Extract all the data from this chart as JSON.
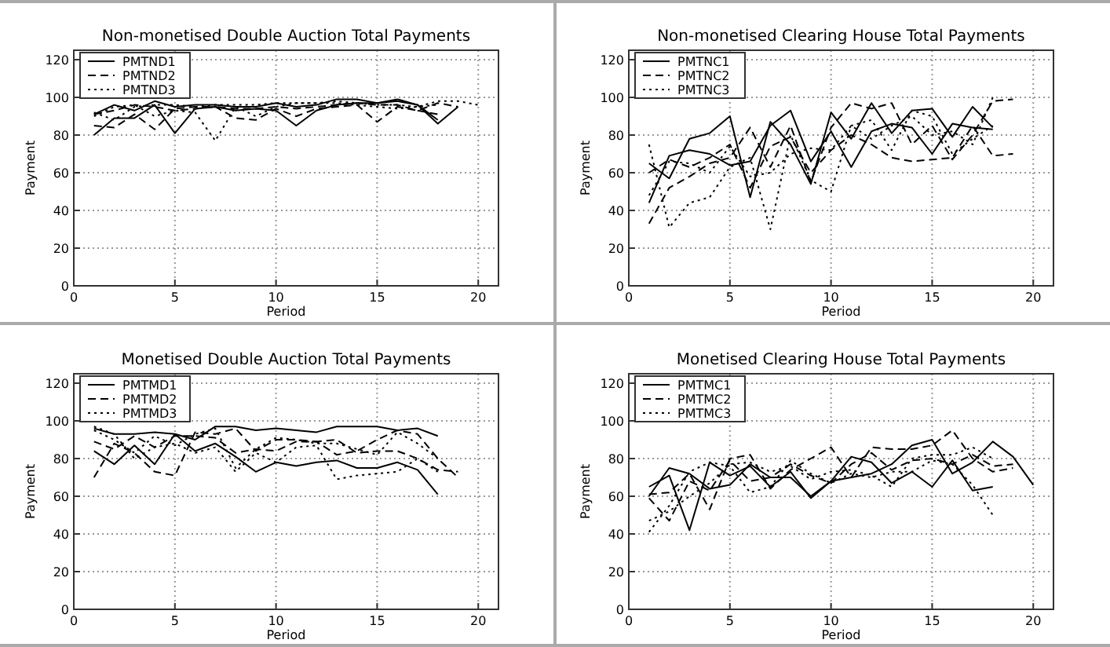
{
  "chart_data": [
    {
      "type": "line",
      "title": "Non-monetised Double Auction Total Payments",
      "xlabel": "Period",
      "ylabel": "Payment",
      "xlim": [
        0,
        21
      ],
      "xticks": [
        0,
        5,
        10,
        15,
        20
      ],
      "ylim": [
        0,
        125
      ],
      "yticks": [
        0,
        20,
        40,
        60,
        80,
        100,
        120
      ],
      "grid": true,
      "legend": "top left",
      "x": [
        1,
        2,
        3,
        4,
        5,
        6,
        7,
        8,
        9,
        10,
        11,
        12,
        13,
        14,
        15,
        16,
        17,
        18,
        19,
        20
      ],
      "series": [
        {
          "name": "PMTND1",
          "color": "#000000",
          "line_style": "solid",
          "values": [
            80,
            89,
            89,
            96,
            81,
            94,
            95,
            93,
            94,
            93,
            85,
            93,
            96,
            97,
            97,
            99,
            96,
            86,
            95,
            null
          ]
        },
        {
          "name": "PMTND2",
          "color": "#000000",
          "line_style": "dashed",
          "values": [
            85,
            84,
            91,
            83,
            94,
            95,
            95,
            89,
            88,
            94,
            90,
            94,
            95,
            96,
            87,
            95,
            93,
            97,
            95,
            null
          ]
        },
        {
          "name": "PMTND3",
          "color": "#000000",
          "line_style": "dotted",
          "values": [
            90,
            95,
            96,
            90,
            93,
            92,
            77,
            95,
            90,
            95,
            97,
            97,
            97,
            96,
            95,
            94,
            95,
            98,
            98,
            96
          ]
        },
        {
          "color": "#000000",
          "line_style": "solid",
          "values": [
            91,
            96,
            93,
            98,
            95,
            96,
            96,
            95,
            95,
            97,
            95,
            96,
            99,
            99,
            97,
            98,
            96,
            88,
            null,
            null
          ]
        },
        {
          "color": "#000000",
          "line_style": "dashed",
          "values": [
            91,
            93,
            96,
            95,
            93,
            94,
            95,
            94,
            94,
            95,
            94,
            95,
            96,
            97,
            96,
            96,
            93,
            91,
            null,
            null
          ]
        },
        {
          "color": "#000000",
          "line_style": "dotted",
          "values": [
            92,
            88,
            95,
            96,
            96,
            95,
            96,
            96,
            96,
            97,
            97,
            97,
            98,
            97,
            96,
            96,
            95,
            96,
            null,
            null
          ]
        }
      ]
    },
    {
      "type": "line",
      "title": "Non-monetised Clearing House Total Payments",
      "xlabel": "Period",
      "ylabel": "Payment",
      "xlim": [
        0,
        21
      ],
      "xticks": [
        0,
        5,
        10,
        15,
        20
      ],
      "ylim": [
        0,
        125
      ],
      "yticks": [
        0,
        20,
        40,
        60,
        80,
        100,
        120
      ],
      "grid": true,
      "legend": "top left",
      "x": [
        1,
        2,
        3,
        4,
        5,
        6,
        7,
        8,
        9,
        10,
        11,
        12,
        13,
        14,
        15,
        16,
        17,
        18,
        19
      ],
      "series": [
        {
          "name": "PMTNC1",
          "color": "#000000",
          "line_style": "solid",
          "values": [
            65,
            57,
            78,
            81,
            90,
            47,
            87,
            75,
            54,
            92,
            78,
            97,
            81,
            93,
            94,
            79,
            95,
            84,
            null
          ]
        },
        {
          "name": "PMTNC2",
          "color": "#000000",
          "line_style": "dashed",
          "values": [
            33,
            52,
            58,
            65,
            68,
            84,
            63,
            85,
            55,
            84,
            97,
            94,
            97,
            75,
            85,
            67,
            80,
            98,
            99
          ]
        },
        {
          "name": "PMTNC3",
          "color": "#000000",
          "line_style": "dotted",
          "values": [
            75,
            31,
            44,
            47,
            63,
            68,
            30,
            80,
            56,
            50,
            85,
            88,
            72,
            93,
            90,
            70,
            78,
            85,
            null
          ]
        },
        {
          "color": "#000000",
          "line_style": "solid",
          "values": [
            44,
            69,
            72,
            70,
            64,
            66,
            85,
            93,
            66,
            82,
            63,
            82,
            86,
            84,
            70,
            86,
            84,
            83,
            null
          ]
        },
        {
          "color": "#000000",
          "line_style": "dashed",
          "values": [
            60,
            67,
            63,
            68,
            75,
            52,
            74,
            79,
            60,
            72,
            80,
            75,
            68,
            66,
            67,
            68,
            85,
            69,
            70
          ]
        },
        {
          "color": "#000000",
          "line_style": "dotted",
          "values": [
            48,
            66,
            65,
            60,
            74,
            58,
            60,
            70,
            73,
            72,
            85,
            78,
            85,
            90,
            80,
            82,
            75,
            100,
            null
          ]
        }
      ]
    },
    {
      "type": "line",
      "title": "Monetised Double Auction Total Payments",
      "xlabel": "Period",
      "ylabel": "Payment",
      "xlim": [
        0,
        21
      ],
      "xticks": [
        0,
        5,
        10,
        15,
        20
      ],
      "ylim": [
        0,
        125
      ],
      "yticks": [
        0,
        20,
        40,
        60,
        80,
        100,
        120
      ],
      "grid": true,
      "legend": "top left",
      "x": [
        1,
        2,
        3,
        4,
        5,
        6,
        7,
        8,
        9,
        10,
        11,
        12,
        13,
        14,
        15,
        16,
        17,
        18,
        19
      ],
      "series": [
        {
          "name": "PMTMD1",
          "color": "#000000",
          "line_style": "solid",
          "values": [
            96,
            93,
            93,
            94,
            93,
            90,
            97,
            97,
            95,
            96,
            95,
            94,
            97,
            97,
            97,
            95,
            96,
            92,
            null
          ]
        },
        {
          "name": "PMTMD2",
          "color": "#000000",
          "line_style": "dashed",
          "values": [
            70,
            88,
            83,
            73,
            71,
            94,
            93,
            96,
            84,
            90,
            90,
            89,
            82,
            84,
            90,
            95,
            93,
            80,
            70
          ]
        },
        {
          "name": "PMTMD3",
          "color": "#000000",
          "line_style": "dotted",
          "values": [
            97,
            93,
            80,
            86,
            88,
            83,
            86,
            73,
            83,
            78,
            86,
            87,
            69,
            71,
            72,
            73,
            80,
            73,
            null
          ]
        },
        {
          "color": "#000000",
          "line_style": "solid",
          "values": [
            84,
            77,
            87,
            77,
            93,
            84,
            88,
            81,
            73,
            78,
            76,
            78,
            79,
            75,
            75,
            78,
            74,
            61,
            null
          ]
        },
        {
          "color": "#000000",
          "line_style": "dashed",
          "values": [
            89,
            85,
            92,
            86,
            92,
            92,
            91,
            83,
            85,
            84,
            89,
            89,
            90,
            83,
            84,
            84,
            80,
            74,
            73
          ]
        },
        {
          "color": "#000000",
          "line_style": "dotted",
          "values": [
            95,
            90,
            83,
            92,
            87,
            93,
            96,
            75,
            85,
            91,
            90,
            88,
            88,
            85,
            82,
            94,
            88,
            80,
            null
          ]
        }
      ]
    },
    {
      "type": "line",
      "title": "Monetised Clearing House Total Payments",
      "xlabel": "Period",
      "ylabel": "Payment",
      "xlim": [
        0,
        21
      ],
      "xticks": [
        0,
        5,
        10,
        15,
        20
      ],
      "ylim": [
        0,
        125
      ],
      "yticks": [
        0,
        20,
        40,
        60,
        80,
        100,
        120
      ],
      "grid": true,
      "legend": "top left",
      "x": [
        1,
        2,
        3,
        4,
        5,
        6,
        7,
        8,
        9,
        10,
        11,
        12,
        13,
        14,
        15,
        16,
        17,
        18,
        19,
        20
      ],
      "series": [
        {
          "name": "PMTMC1",
          "color": "#000000",
          "line_style": "solid",
          "values": [
            65,
            71,
            42,
            78,
            71,
            76,
            65,
            73,
            59,
            68,
            81,
            78,
            67,
            73,
            65,
            79,
            63,
            65,
            null,
            null
          ]
        },
        {
          "name": "PMTMC2",
          "color": "#000000",
          "line_style": "dashed",
          "values": [
            61,
            62,
            72,
            53,
            80,
            82,
            64,
            74,
            80,
            86,
            70,
            86,
            85,
            85,
            87,
            95,
            80,
            73,
            75,
            null
          ]
        },
        {
          "name": "PMTMC3",
          "color": "#000000",
          "line_style": "dotted",
          "values": [
            41,
            55,
            73,
            78,
            76,
            62,
            65,
            79,
            72,
            67,
            72,
            70,
            73,
            73,
            79,
            77,
            66,
            50,
            null,
            null
          ]
        },
        {
          "color": "#000000",
          "line_style": "solid",
          "values": [
            60,
            75,
            72,
            64,
            66,
            77,
            70,
            70,
            60,
            68,
            70,
            72,
            77,
            87,
            90,
            72,
            78,
            89,
            81,
            66
          ]
        },
        {
          "color": "#000000",
          "line_style": "dashed",
          "values": [
            59,
            47,
            68,
            63,
            79,
            68,
            70,
            77,
            71,
            67,
            77,
            83,
            74,
            79,
            80,
            77,
            82,
            76,
            77,
            null
          ]
        },
        {
          "color": "#000000",
          "line_style": "dotted",
          "values": [
            47,
            52,
            60,
            67,
            77,
            78,
            73,
            76,
            69,
            73,
            74,
            71,
            65,
            80,
            82,
            82,
            86,
            80,
            null,
            null
          ]
        }
      ]
    }
  ]
}
